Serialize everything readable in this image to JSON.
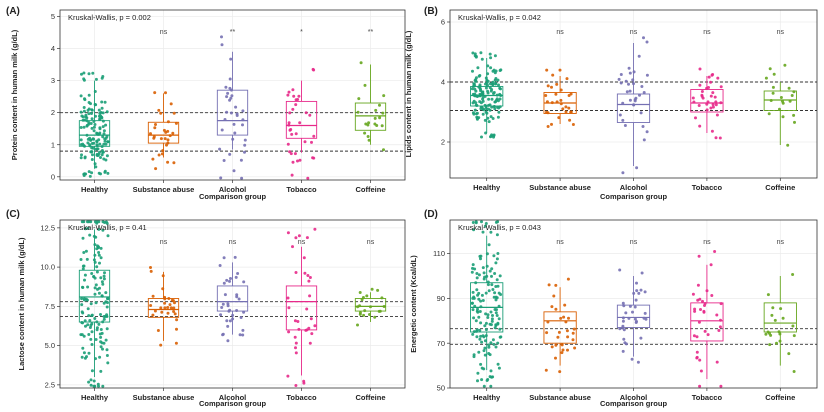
{
  "figure": {
    "categories": [
      "Healthy",
      "Substance abuse",
      "Alcohol",
      "Tobacco",
      "Coffeine"
    ],
    "colors": [
      "#1b9e77",
      "#d95f02",
      "#7570b3",
      "#e7298a",
      "#66a61e"
    ],
    "xlabel": "Comparison group"
  },
  "chart_data": [
    {
      "type": "boxplot",
      "panel": "(A)",
      "test_label": "Kruskal-Wallis, p = 0.002",
      "ylabel": "Protein content in human milk (g/dL)",
      "ylim": [
        -0.1,
        5.2
      ],
      "yticks": [
        0,
        1,
        2,
        3,
        4,
        5
      ],
      "reference_lines": [
        2.0,
        0.8
      ],
      "significance": [
        "",
        "ns",
        "**",
        "*",
        "**"
      ],
      "boxes": [
        {
          "category": "Healthy",
          "min": 0.25,
          "q1": 0.95,
          "median": 1.3,
          "q3": 1.75,
          "max": 3.0
        },
        {
          "category": "Substance abuse",
          "min": 0.6,
          "q1": 1.05,
          "median": 1.3,
          "q3": 1.7,
          "max": 2.6
        },
        {
          "category": "Alcohol",
          "min": 0.85,
          "q1": 1.3,
          "median": 1.75,
          "q3": 2.7,
          "max": 3.9
        },
        {
          "category": "Tobacco",
          "min": 0.75,
          "q1": 1.2,
          "median": 1.6,
          "q3": 2.35,
          "max": 3.0
        },
        {
          "category": "Coffeine",
          "min": 1.0,
          "q1": 1.45,
          "median": 1.9,
          "q3": 2.3,
          "max": 3.5
        }
      ],
      "point_counts": [
        150,
        30,
        35,
        35,
        20
      ]
    },
    {
      "type": "boxplot",
      "panel": "(B)",
      "test_label": "Kruskal-Wallis, p = 0.042",
      "ylabel": "Lipids content in human milk (g/dL)",
      "ylim": [
        0.8,
        6.4
      ],
      "yticks": [
        2,
        4,
        6
      ],
      "reference_lines": [
        4.0,
        3.05
      ],
      "significance": [
        "",
        "ns",
        "ns",
        "ns",
        "ns"
      ],
      "boxes": [
        {
          "category": "Healthy",
          "min": 2.3,
          "q1": 3.2,
          "median": 3.55,
          "q3": 3.85,
          "max": 4.8
        },
        {
          "category": "Substance abuse",
          "min": 2.6,
          "q1": 2.95,
          "median": 3.3,
          "q3": 3.65,
          "max": 4.2
        },
        {
          "category": "Alcohol",
          "min": 1.2,
          "q1": 2.65,
          "median": 3.25,
          "q3": 3.6,
          "max": 5.3
        },
        {
          "category": "Tobacco",
          "min": 2.3,
          "q1": 3.0,
          "median": 3.3,
          "q3": 3.75,
          "max": 4.2
        },
        {
          "category": "Coffeine",
          "min": 1.9,
          "q1": 3.05,
          "median": 3.4,
          "q3": 3.7,
          "max": 4.0
        }
      ],
      "point_counts": [
        150,
        30,
        35,
        35,
        20
      ]
    },
    {
      "type": "boxplot",
      "panel": "(C)",
      "test_label": "Kruskal-Wallis, p = 0.41",
      "ylabel": "Lactose content in human milk (g/dL)",
      "ylim": [
        2.3,
        13.0
      ],
      "yticks": [
        2.5,
        5.0,
        7.5,
        10.0,
        12.5
      ],
      "ytick_labels": [
        "2.5",
        "5.0",
        "7.5",
        "10.0",
        "12.5"
      ],
      "reference_lines": [
        7.8,
        6.85
      ],
      "significance": [
        "",
        "ns",
        "ns",
        "ns",
        "ns"
      ],
      "boxes": [
        {
          "category": "Healthy",
          "min": 3.0,
          "q1": 6.5,
          "median": 8.1,
          "q3": 9.8,
          "max": 12.4
        },
        {
          "category": "Substance abuse",
          "min": 5.3,
          "q1": 6.8,
          "median": 7.3,
          "q3": 8.0,
          "max": 9.7
        },
        {
          "category": "Alcohol",
          "min": 5.7,
          "q1": 7.2,
          "median": 7.8,
          "q3": 8.8,
          "max": 10.3
        },
        {
          "category": "Tobacco",
          "min": 3.1,
          "q1": 6.0,
          "median": 7.8,
          "q3": 8.8,
          "max": 11.3
        },
        {
          "category": "Coffeine",
          "min": 6.5,
          "q1": 7.2,
          "median": 7.5,
          "q3": 8.0,
          "max": 8.4
        }
      ],
      "point_counts": [
        150,
        30,
        35,
        35,
        20
      ]
    },
    {
      "type": "boxplot",
      "panel": "(D)",
      "test_label": "Kruskal-Wallis, p = 0.043",
      "ylabel": "Energetic content (Kcal/dL)",
      "ylim": [
        50,
        125
      ],
      "yticks": [
        50,
        70,
        90,
        110
      ],
      "reference_lines": [
        76.5,
        69.5
      ],
      "significance": [
        "",
        "ns",
        "ns",
        "ns",
        "ns"
      ],
      "boxes": [
        {
          "category": "Healthy",
          "min": 58,
          "q1": 75,
          "median": 86,
          "q3": 97,
          "max": 118
        },
        {
          "category": "Substance abuse",
          "min": 60,
          "q1": 70,
          "median": 80,
          "q3": 84,
          "max": 95
        },
        {
          "category": "Alcohol",
          "min": 64,
          "q1": 77,
          "median": 81.5,
          "q3": 87,
          "max": 100
        },
        {
          "category": "Tobacco",
          "min": 54,
          "q1": 71,
          "median": 80,
          "q3": 88,
          "max": 105
        },
        {
          "category": "Coffeine",
          "min": 60,
          "q1": 75,
          "median": 79,
          "q3": 88,
          "max": 100
        }
      ],
      "point_counts": [
        150,
        30,
        35,
        35,
        20
      ]
    }
  ]
}
